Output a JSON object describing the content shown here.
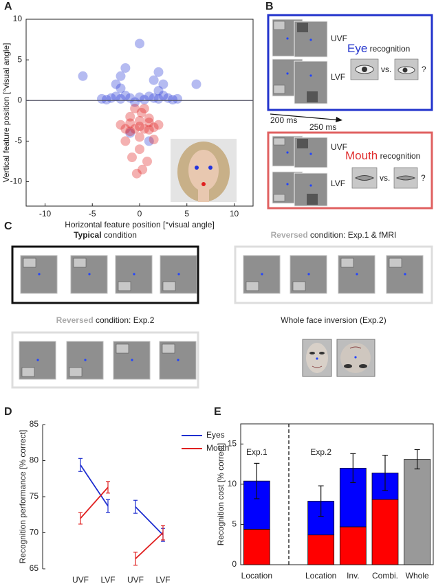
{
  "panel_labels": [
    "A",
    "B",
    "C",
    "D",
    "E"
  ],
  "chart_data": [
    {
      "type": "scatter",
      "x_label": "Horizontal feature position [°visual angle]",
      "y_label": "Vertical feature position [°visual angle]",
      "xlim": [
        -12,
        12
      ],
      "ylim": [
        -13,
        10
      ],
      "xticks": [
        -10,
        -5,
        0,
        5,
        10
      ],
      "yticks": [
        -10,
        -5,
        0,
        5,
        10
      ],
      "series": [
        {
          "color": "#2b3bd6",
          "x": [
            -4,
            -3.5,
            -3,
            -2.5,
            -2,
            -1.5,
            -1,
            -0.5,
            0,
            0.5,
            1,
            1.5,
            2,
            2.5,
            3,
            3.5,
            4,
            -2.5,
            -2,
            -1.5,
            1.5,
            2,
            2.5,
            -2,
            2,
            -6,
            6,
            -1,
            1,
            0
          ],
          "y": [
            0.2,
            0.1,
            0.3,
            0.5,
            0.2,
            0.6,
            0.3,
            -0.2,
            0.4,
            0.1,
            0.5,
            0.3,
            0.2,
            0.6,
            0.3,
            0.1,
            0.2,
            2,
            3,
            4,
            2.5,
            3.5,
            2,
            1.5,
            1.2,
            3,
            2,
            -4,
            -5,
            7
          ]
        },
        {
          "color": "#e02020",
          "x": [
            -2,
            -1.5,
            -1,
            -0.5,
            0,
            0.5,
            1,
            1.5,
            2,
            -1,
            0,
            1,
            -0.5,
            0.5,
            0,
            -1.5,
            1.5,
            0,
            -0.8,
            0.8,
            -0.3,
            0.3,
            -1,
            1,
            0.2
          ],
          "y": [
            -3,
            -3.5,
            -3.8,
            -3.5,
            -3.2,
            -3.5,
            -3.6,
            -3.3,
            -3,
            -2,
            -2.5,
            -2.2,
            -1,
            -1,
            -4.5,
            -5,
            -4.8,
            -6,
            -7,
            -7.5,
            -9,
            -8.5,
            -2.8,
            -2.7,
            -1.5
          ]
        }
      ]
    },
    {
      "type": "line",
      "y_label": "Recognition performance [% correct]",
      "categories": [
        "UVF",
        "LVF",
        null,
        "UVF",
        "LVF"
      ],
      "ylim": [
        65,
        85
      ],
      "yticks": [
        65,
        70,
        75,
        80,
        85
      ],
      "legend": "upper right",
      "series": [
        {
          "name": "Eyes",
          "color": "#1f2fd0",
          "values": [
            79.4,
            73.7,
            null,
            73.6,
            69.7
          ],
          "errors": [
            0.9,
            0.9,
            null,
            0.9,
            0.9
          ]
        },
        {
          "name": "Mouth",
          "color": "#e02020",
          "values": [
            72.0,
            76.3,
            null,
            66.4,
            70.0
          ],
          "errors": [
            0.8,
            0.8,
            null,
            0.9,
            1.0
          ]
        }
      ]
    },
    {
      "type": "bar",
      "stacked": true,
      "y_label": "Recognition cost [% correct]",
      "categories": [
        "Location",
        null,
        "Location",
        "Inv.",
        "Combi.",
        "Whole"
      ],
      "ylim": [
        0,
        17.5
      ],
      "yticks": [
        0,
        5,
        10,
        15
      ],
      "annotations": [
        "Exp.1",
        "Exp.2"
      ],
      "series": [
        {
          "color": "#ff0000",
          "values": [
            4.4,
            null,
            3.7,
            4.7,
            8.1,
            null
          ]
        },
        {
          "color": "#0000ff",
          "values": [
            6.0,
            null,
            4.2,
            7.3,
            3.3,
            null
          ],
          "errors": [
            2.2,
            null,
            1.9,
            1.8,
            2.2,
            null
          ]
        },
        {
          "color": "#999999",
          "values": [
            null,
            null,
            null,
            null,
            null,
            13.1
          ],
          "errors": [
            null,
            null,
            null,
            null,
            null,
            1.2
          ]
        }
      ]
    }
  ],
  "panel_b": {
    "eye_box": {
      "upper": "UVF",
      "lower": "LVF",
      "target": "Eye",
      "task": " recognition",
      "vs": "vs.",
      "question": "?"
    },
    "timing": [
      "200 ms",
      "250 ms"
    ],
    "mouth_box": {
      "upper": "UVF",
      "lower": "LVF",
      "target": "Mouth",
      "task": " recognition",
      "vs": "vs.",
      "question": "?"
    }
  },
  "panel_c": {
    "typical": {
      "emphasis": "Typical",
      "rest": " condition"
    },
    "reversed_1": {
      "emphasis": "Reversed",
      "rest": " condition: Exp.1 & fMRI"
    },
    "reversed_2": {
      "emphasis": "Reversed",
      "rest": " condition: Exp.2"
    },
    "inversion": "Whole face inversion (Exp.2)"
  }
}
